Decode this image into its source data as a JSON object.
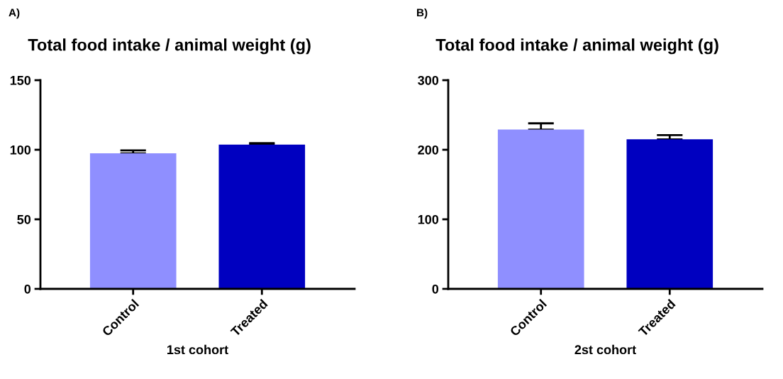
{
  "chart_data": [
    {
      "type": "bar",
      "title": "Total food intake / animal weight (g)",
      "xlabel": "1st cohort",
      "annotations": [
        "A)"
      ],
      "categories": [
        "Control",
        "Treated"
      ],
      "values": [
        97.4,
        103.7
      ],
      "colors": [
        "#8f8fff",
        "#0000c0"
      ],
      "errors": [
        [
          97.4,
          99.5
        ],
        [
          103.7,
          104.8
        ]
      ],
      "ylim": [
        0,
        150
      ],
      "yticks": [
        0,
        50,
        100,
        150
      ],
      "grid": false,
      "legend": false
    },
    {
      "type": "bar",
      "title": "Total food intake / animal weight (g)",
      "xlabel": "2st cohort",
      "annotations": [
        "B)"
      ],
      "categories": [
        "Control",
        "Treated"
      ],
      "values": [
        229,
        215
      ],
      "colors": [
        "#8f8fff",
        "#0000c0"
      ],
      "errors": [
        [
          229,
          238
        ],
        [
          215,
          221
        ]
      ],
      "ylim": [
        0,
        300
      ],
      "yticks": [
        0,
        100,
        200,
        300
      ],
      "grid": false,
      "legend": false
    }
  ]
}
